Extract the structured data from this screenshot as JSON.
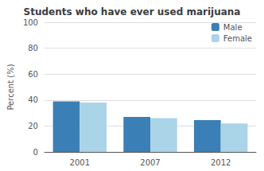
{
  "chart_data": {
    "type": "bar",
    "title": "Students who have ever used marijuana",
    "categories": [
      "2001",
      "2007",
      "2012"
    ],
    "series": [
      {
        "name": "Male",
        "color": "#3a7fb5",
        "values": [
          39,
          27,
          24.5
        ]
      },
      {
        "name": "Female",
        "color": "#aad4e8",
        "values": [
          38,
          26,
          22
        ]
      }
    ],
    "ylabel": "Percent (%)",
    "ylim": [
      0,
      100
    ],
    "yticks": [
      0,
      20,
      40,
      60,
      80,
      100
    ],
    "grid": true,
    "legend": "upper right"
  }
}
